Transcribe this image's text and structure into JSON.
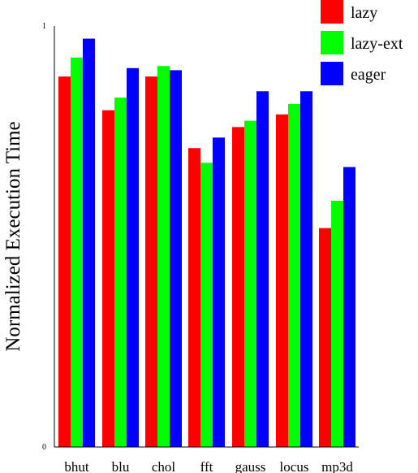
{
  "chart_data": {
    "type": "bar",
    "categories": [
      "bhut",
      "blu",
      "chol",
      "fft",
      "gauss",
      "locus",
      "mp3d"
    ],
    "series": [
      {
        "name": "lazy",
        "color": "#ff0000",
        "values": [
          0.88,
          0.8,
          0.88,
          0.71,
          0.76,
          0.79,
          0.52
        ]
      },
      {
        "name": "lazy-ext",
        "color": "#00ff00",
        "values": [
          0.925,
          0.83,
          0.905,
          0.675,
          0.775,
          0.815,
          0.585
        ]
      },
      {
        "name": "eager",
        "color": "#0000ff",
        "values": [
          0.97,
          0.9,
          0.895,
          0.735,
          0.845,
          0.845,
          0.665
        ]
      }
    ],
    "ylim": [
      0,
      1
    ],
    "yticks": [
      "0",
      "1"
    ],
    "ylabel": "Normalized Execution Time",
    "xlabel": "",
    "title": "",
    "grid": false,
    "legend": "top-right"
  }
}
